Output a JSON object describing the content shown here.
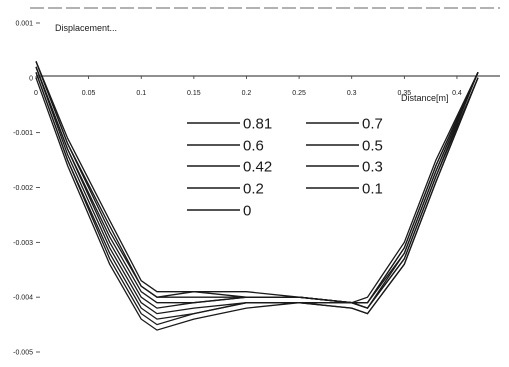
{
  "chart_data": {
    "type": "line",
    "title": "",
    "ylabel": "Displacement...",
    "xlabel": "Distance[m]",
    "xlim": [
      0,
      0.42
    ],
    "ylim": [
      -0.005,
      0.001
    ],
    "x_ticks": [
      "0",
      "0.05",
      "0.1",
      "0.15",
      "0.2",
      "0.25",
      "0.3",
      "0.35",
      "0.4"
    ],
    "x_tick_values": [
      0,
      0.05,
      0.1,
      0.15,
      0.2,
      0.25,
      0.3,
      0.35,
      0.4
    ],
    "y_ticks": [
      "0.001",
      "0",
      "-0.001",
      "-0.002",
      "-0.003",
      "-0.004",
      "-0.005"
    ],
    "y_tick_values": [
      0.001,
      0,
      -0.001,
      -0.002,
      -0.003,
      -0.004,
      -0.005
    ],
    "legend": {
      "placement": "center",
      "columns": 2
    },
    "grid": false,
    "line_color": "#1a1a1a",
    "series": [
      {
        "name": "0.81",
        "x": [
          0,
          0.03,
          0.07,
          0.1,
          0.115,
          0.15,
          0.2,
          0.25,
          0.3,
          0.315,
          0.35,
          0.38,
          0.42
        ],
        "y": [
          0.0003,
          -0.0011,
          -0.0026,
          -0.0037,
          -0.0039,
          -0.0039,
          -0.0039,
          -0.004,
          -0.0041,
          -0.004,
          -0.003,
          -0.0015,
          0.0001
        ]
      },
      {
        "name": "0.7",
        "x": [
          0,
          0.03,
          0.07,
          0.1,
          0.115,
          0.15,
          0.2,
          0.25,
          0.3,
          0.315,
          0.35,
          0.38,
          0.42
        ],
        "y": [
          0.0003,
          -0.0012,
          -0.0027,
          -0.0038,
          -0.004,
          -0.0039,
          -0.004,
          -0.004,
          -0.0041,
          -0.0041,
          -0.0031,
          -0.0016,
          0.0001
        ]
      },
      {
        "name": "0.6",
        "x": [
          0,
          0.03,
          0.07,
          0.1,
          0.115,
          0.15,
          0.2,
          0.25,
          0.3,
          0.315,
          0.35,
          0.38,
          0.42
        ],
        "y": [
          0.0003,
          -0.0012,
          -0.0028,
          -0.0038,
          -0.004,
          -0.004,
          -0.004,
          -0.004,
          -0.0041,
          -0.0041,
          -0.0031,
          -0.0016,
          0.0001
        ]
      },
      {
        "name": "0.5",
        "x": [
          0,
          0.03,
          0.07,
          0.1,
          0.115,
          0.15,
          0.2,
          0.25,
          0.3,
          0.315,
          0.35,
          0.38,
          0.42
        ],
        "y": [
          0.0002,
          -0.0013,
          -0.0029,
          -0.0039,
          -0.0041,
          -0.0041,
          -0.004,
          -0.004,
          -0.0041,
          -0.0041,
          -0.0032,
          -0.0017,
          0.0001
        ]
      },
      {
        "name": "0.42",
        "x": [
          0,
          0.03,
          0.07,
          0.1,
          0.115,
          0.15,
          0.2,
          0.25,
          0.3,
          0.315,
          0.35,
          0.38,
          0.42
        ],
        "y": [
          0.0002,
          -0.0013,
          -0.003,
          -0.004,
          -0.0042,
          -0.0041,
          -0.004,
          -0.004,
          -0.0041,
          -0.0042,
          -0.0032,
          -0.0017,
          0.0001
        ]
      },
      {
        "name": "0.3",
        "x": [
          0,
          0.03,
          0.07,
          0.1,
          0.115,
          0.15,
          0.2,
          0.25,
          0.3,
          0.315,
          0.35,
          0.38,
          0.42
        ],
        "y": [
          0.0002,
          -0.0014,
          -0.0031,
          -0.0041,
          -0.0043,
          -0.0042,
          -0.0041,
          -0.0041,
          -0.0041,
          -0.0042,
          -0.0033,
          -0.0018,
          0.0001
        ]
      },
      {
        "name": "0.2",
        "x": [
          0,
          0.03,
          0.07,
          0.1,
          0.115,
          0.15,
          0.2,
          0.25,
          0.3,
          0.315,
          0.35,
          0.38,
          0.42
        ],
        "y": [
          0.0001,
          -0.0015,
          -0.0032,
          -0.0042,
          -0.0044,
          -0.0043,
          -0.0041,
          -0.0041,
          -0.0041,
          -0.0042,
          -0.0033,
          -0.0018,
          0.0
        ]
      },
      {
        "name": "0.1",
        "x": [
          0,
          0.03,
          0.07,
          0.1,
          0.115,
          0.15,
          0.2,
          0.25,
          0.3,
          0.315,
          0.35,
          0.38,
          0.42
        ],
        "y": [
          0.0001,
          -0.0015,
          -0.0033,
          -0.0043,
          -0.0045,
          -0.0043,
          -0.0041,
          -0.0041,
          -0.0042,
          -0.0043,
          -0.0034,
          -0.0019,
          0.0
        ]
      },
      {
        "name": "0",
        "x": [
          0,
          0.03,
          0.07,
          0.1,
          0.115,
          0.15,
          0.2,
          0.25,
          0.3,
          0.315,
          0.35,
          0.38,
          0.42
        ],
        "y": [
          0.0,
          -0.0016,
          -0.0034,
          -0.0044,
          -0.0046,
          -0.0044,
          -0.0042,
          -0.0041,
          -0.0042,
          -0.0043,
          -0.0034,
          -0.0019,
          0.0
        ]
      }
    ]
  }
}
